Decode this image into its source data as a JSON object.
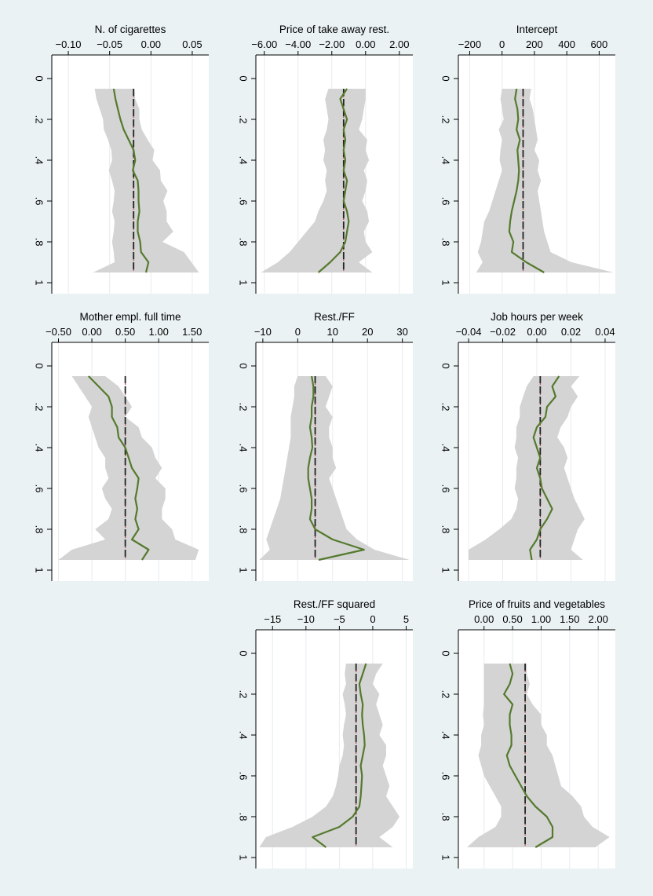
{
  "chart_data": [
    {
      "type": "line",
      "title": "N. of cigarettes",
      "xlim": [
        -0.12,
        0.07
      ],
      "xticks": [
        -0.1,
        -0.05,
        0.0,
        0.05
      ],
      "xtick_labels": [
        "−0.10",
        "−0.05",
        "0.00",
        "0.05"
      ],
      "ylim": [
        0,
        1
      ],
      "yticks": [
        0,
        0.2,
        0.4,
        0.6,
        0.8,
        1
      ],
      "ytick_labels": [
        "0",
        ".2",
        ".4",
        ".6",
        ".8",
        "1"
      ],
      "quantiles": [
        0.05,
        0.1,
        0.15,
        0.2,
        0.25,
        0.3,
        0.35,
        0.4,
        0.45,
        0.5,
        0.55,
        0.6,
        0.65,
        0.7,
        0.75,
        0.8,
        0.85,
        0.9,
        0.95
      ],
      "estimate": [
        -0.045,
        -0.043,
        -0.04,
        -0.037,
        -0.033,
        -0.027,
        -0.021,
        -0.019,
        -0.022,
        -0.016,
        -0.015,
        -0.015,
        -0.014,
        -0.016,
        -0.016,
        -0.013,
        -0.012,
        -0.003,
        -0.006
      ],
      "ci_lower": [
        -0.068,
        -0.066,
        -0.062,
        -0.058,
        -0.057,
        -0.052,
        -0.048,
        -0.047,
        -0.051,
        -0.047,
        -0.044,
        -0.045,
        -0.047,
        -0.044,
        -0.045,
        -0.047,
        -0.045,
        -0.044,
        -0.07
      ],
      "ci_upper": [
        -0.02,
        -0.019,
        -0.014,
        -0.014,
        -0.011,
        -0.004,
        0.004,
        0.002,
        0.011,
        0.012,
        0.02,
        0.015,
        0.019,
        0.019,
        0.027,
        0.014,
        0.04,
        0.049,
        0.058
      ],
      "ols": -0.021
    },
    {
      "type": "line",
      "title": "Price of take away rest.",
      "xlim": [
        -6.5,
        2.8
      ],
      "xticks": [
        -6,
        -4,
        -2,
        0,
        2
      ],
      "xtick_labels": [
        "−6.00",
        "−4.00",
        "−2.00",
        "0.00",
        "2.00"
      ],
      "ylim": [
        0,
        1
      ],
      "yticks": [
        0,
        0.2,
        0.4,
        0.6,
        0.8,
        1
      ],
      "ytick_labels": [
        "0",
        ".2",
        ".4",
        ".6",
        ".8",
        "1"
      ],
      "quantiles": [
        0.05,
        0.1,
        0.15,
        0.2,
        0.25,
        0.3,
        0.35,
        0.4,
        0.45,
        0.5,
        0.55,
        0.6,
        0.65,
        0.7,
        0.75,
        0.8,
        0.85,
        0.9,
        0.95
      ],
      "estimate": [
        -1.1,
        -1.5,
        -1.3,
        -1.1,
        -1.3,
        -1.2,
        -1.3,
        -1.2,
        -1.3,
        -1.1,
        -1.2,
        -1.3,
        -1.1,
        -1.0,
        -1.1,
        -1.2,
        -1.5,
        -2.1,
        -2.8
      ],
      "ci_lower": [
        -2.2,
        -2.4,
        -2.3,
        -2.2,
        -2.3,
        -2.5,
        -2.4,
        -2.5,
        -2.3,
        -2.4,
        -2.3,
        -2.5,
        -2.8,
        -3.0,
        -3.5,
        -4.0,
        -4.5,
        -5.2,
        -6.2
      ],
      "ci_upper": [
        0.0,
        0.0,
        -0.1,
        -0.2,
        -0.4,
        0.1,
        0.0,
        0.2,
        -0.1,
        0.1,
        0.0,
        -0.2,
        0.1,
        0.2,
        -0.1,
        0.0,
        0.4,
        -0.4,
        0.4
      ],
      "ols": -1.3
    },
    {
      "type": "line",
      "title": "Intercept",
      "xlim": [
        -270,
        700
      ],
      "xticks": [
        -200,
        0,
        200,
        400,
        600
      ],
      "xtick_labels": [
        "−200",
        "0",
        "200",
        "400",
        "600"
      ],
      "ylim": [
        0,
        1
      ],
      "yticks": [
        0,
        0.2,
        0.4,
        0.6,
        0.8,
        1
      ],
      "ytick_labels": [
        "0",
        ".2",
        ".4",
        ".6",
        ".8",
        "1"
      ],
      "quantiles": [
        0.05,
        0.1,
        0.15,
        0.2,
        0.25,
        0.3,
        0.35,
        0.4,
        0.45,
        0.5,
        0.55,
        0.6,
        0.65,
        0.7,
        0.75,
        0.8,
        0.85,
        0.9,
        0.95
      ],
      "estimate": [
        90,
        80,
        95,
        100,
        90,
        110,
        95,
        100,
        105,
        100,
        90,
        75,
        60,
        50,
        45,
        70,
        60,
        150,
        260
      ],
      "ci_lower": [
        0,
        -10,
        0,
        10,
        -20,
        0,
        -10,
        -15,
        0,
        -20,
        -40,
        -60,
        -80,
        -110,
        -120,
        -130,
        -150,
        -120,
        -160
      ],
      "ci_upper": [
        180,
        170,
        190,
        200,
        210,
        220,
        200,
        230,
        220,
        240,
        220,
        230,
        240,
        250,
        260,
        280,
        300,
        430,
        690
      ],
      "ols": 130
    },
    {
      "type": "line",
      "title": "Mother empl. full time",
      "xlim": [
        -0.6,
        1.75
      ],
      "xticks": [
        -0.5,
        0,
        0.5,
        1.0,
        1.5
      ],
      "xtick_labels": [
        "−0.50",
        "0.00",
        "0.50",
        "1.00",
        "1.50"
      ],
      "ylim": [
        0,
        1
      ],
      "yticks": [
        0,
        0.2,
        0.4,
        0.6,
        0.8,
        1
      ],
      "ytick_labels": [
        "0",
        ".2",
        ".4",
        ".6",
        ".8",
        "1"
      ],
      "quantiles": [
        0.05,
        0.1,
        0.15,
        0.2,
        0.25,
        0.3,
        0.35,
        0.4,
        0.45,
        0.5,
        0.55,
        0.6,
        0.65,
        0.7,
        0.75,
        0.8,
        0.85,
        0.9,
        0.95
      ],
      "estimate": [
        -0.05,
        0.1,
        0.25,
        0.3,
        0.3,
        0.38,
        0.4,
        0.5,
        0.55,
        0.6,
        0.7,
        0.68,
        0.65,
        0.68,
        0.65,
        0.7,
        0.6,
        0.85,
        0.75
      ],
      "ci_lower": [
        -0.3,
        -0.2,
        -0.1,
        0.0,
        -0.05,
        0.0,
        0.05,
        0.1,
        0.2,
        0.2,
        0.25,
        0.15,
        0.2,
        0.3,
        0.25,
        0.05,
        0.2,
        -0.3,
        -0.5
      ],
      "ci_upper": [
        0.2,
        0.4,
        0.5,
        0.6,
        0.5,
        0.7,
        0.75,
        0.9,
        0.95,
        1.05,
        0.95,
        1.1,
        1.1,
        1.05,
        1.05,
        1.2,
        1.25,
        1.6,
        1.55
      ],
      "ols": 0.5
    },
    {
      "type": "line",
      "title": "Rest./FF",
      "xlim": [
        -12,
        33
      ],
      "xticks": [
        -10,
        0,
        10,
        20,
        30
      ],
      "xtick_labels": [
        "−10",
        "0",
        "10",
        "20",
        "30"
      ],
      "ylim": [
        0,
        1
      ],
      "yticks": [
        0,
        0.2,
        0.4,
        0.6,
        0.8,
        1
      ],
      "ytick_labels": [
        "0",
        ".2",
        ".4",
        ".6",
        ".8",
        "1"
      ],
      "quantiles": [
        0.05,
        0.1,
        0.15,
        0.2,
        0.25,
        0.3,
        0.35,
        0.4,
        0.45,
        0.5,
        0.55,
        0.6,
        0.65,
        0.7,
        0.75,
        0.8,
        0.85,
        0.9,
        0.95
      ],
      "estimate": [
        4,
        4.5,
        4.5,
        4,
        4,
        3.5,
        4,
        4.2,
        3.5,
        3,
        3,
        3.5,
        4,
        4,
        3.5,
        5,
        10,
        19,
        6
      ],
      "ci_lower": [
        0,
        -1,
        -1,
        -1.5,
        -2,
        -2,
        -2,
        -2.5,
        -3,
        -3.5,
        -4,
        -4.5,
        -5,
        -6,
        -7,
        -8,
        -9,
        -8,
        -11
      ],
      "ci_upper": [
        8,
        10,
        9,
        8,
        10,
        9,
        9,
        10,
        10,
        11,
        9,
        10,
        11,
        12,
        13,
        14,
        17,
        22,
        32
      ],
      "ols": 5
    },
    {
      "type": "line",
      "title": "Job hours per week",
      "xlim": [
        -0.046,
        0.046
      ],
      "xticks": [
        -0.04,
        -0.02,
        0,
        0.02,
        0.04
      ],
      "xtick_labels": [
        "−0.04",
        "−0.02",
        "0.00",
        "0.02",
        "0.04"
      ],
      "ylim": [
        0,
        1
      ],
      "yticks": [
        0,
        0.2,
        0.4,
        0.6,
        0.8,
        1
      ],
      "ytick_labels": [
        "0",
        ".2",
        ".4",
        ".6",
        ".8",
        "1"
      ],
      "quantiles": [
        0.05,
        0.1,
        0.15,
        0.2,
        0.25,
        0.3,
        0.35,
        0.4,
        0.45,
        0.5,
        0.55,
        0.6,
        0.65,
        0.7,
        0.75,
        0.8,
        0.85,
        0.9,
        0.95
      ],
      "estimate": [
        0.013,
        0.009,
        0.011,
        0.006,
        0.005,
        0.0,
        -0.002,
        0.0,
        0.002,
        0.0,
        0.002,
        0.003,
        0.006,
        0.009,
        0.006,
        0.002,
        0.0,
        -0.004,
        -0.003
      ],
      "ci_lower": [
        -0.002,
        -0.006,
        -0.008,
        -0.01,
        -0.01,
        -0.012,
        -0.012,
        -0.013,
        -0.011,
        -0.012,
        -0.012,
        -0.013,
        -0.011,
        -0.012,
        -0.015,
        -0.022,
        -0.03,
        -0.04,
        -0.04
      ],
      "ci_upper": [
        0.025,
        0.02,
        0.024,
        0.02,
        0.018,
        0.014,
        0.012,
        0.016,
        0.018,
        0.016,
        0.018,
        0.02,
        0.022,
        0.025,
        0.028,
        0.024,
        0.022,
        0.02,
        0.027
      ],
      "ols": 0.002
    },
    {
      "type": "line",
      "title": "Rest./FF squared",
      "xlim": [
        -17.5,
        6
      ],
      "xticks": [
        -15,
        -10,
        -5,
        0,
        5
      ],
      "xtick_labels": [
        "−15",
        "−10",
        "−5",
        "0",
        "5"
      ],
      "ylim": [
        0,
        1
      ],
      "yticks": [
        0,
        0.2,
        0.4,
        0.6,
        0.8,
        1
      ],
      "ytick_labels": [
        "0",
        ".2",
        ".4",
        ".6",
        ".8",
        "1"
      ],
      "quantiles": [
        0.05,
        0.1,
        0.15,
        0.2,
        0.25,
        0.3,
        0.35,
        0.4,
        0.45,
        0.5,
        0.55,
        0.6,
        0.65,
        0.7,
        0.75,
        0.8,
        0.85,
        0.9,
        0.95
      ],
      "estimate": [
        -1,
        -1.5,
        -2,
        -1.8,
        -1.5,
        -1.6,
        -1.5,
        -1.3,
        -1.2,
        -1.5,
        -1.8,
        -1.6,
        -1.7,
        -1.8,
        -2,
        -3,
        -5,
        -9,
        -7
      ],
      "ci_lower": [
        -4,
        -4.2,
        -4,
        -4.5,
        -4.2,
        -4,
        -4.3,
        -4.5,
        -4.3,
        -4.5,
        -5,
        -5.2,
        -5.5,
        -6,
        -7,
        -9,
        -12,
        -16,
        -17
      ],
      "ci_upper": [
        1.5,
        0.5,
        0,
        1,
        0.5,
        1,
        1.5,
        1,
        2,
        2,
        1.5,
        2,
        2.5,
        2,
        3,
        4,
        3,
        1,
        3
      ],
      "ols": -2.5
    },
    {
      "type": "line",
      "title": "Price of fruits and vegetables",
      "xlim": [
        -0.45,
        2.3
      ],
      "xticks": [
        0,
        0.5,
        1.0,
        1.5,
        2.0
      ],
      "xtick_labels": [
        "0.00",
        "0.50",
        "1.00",
        "1.50",
        "2.00"
      ],
      "ylim": [
        0,
        1
      ],
      "yticks": [
        0,
        0.2,
        0.4,
        0.6,
        0.8,
        1
      ],
      "ytick_labels": [
        "0",
        ".2",
        ".4",
        ".6",
        ".8",
        "1"
      ],
      "quantiles": [
        0.05,
        0.1,
        0.15,
        0.2,
        0.25,
        0.3,
        0.35,
        0.4,
        0.45,
        0.5,
        0.55,
        0.6,
        0.65,
        0.7,
        0.75,
        0.8,
        0.85,
        0.9,
        0.95
      ],
      "estimate": [
        0.45,
        0.5,
        0.45,
        0.35,
        0.5,
        0.45,
        0.45,
        0.48,
        0.48,
        0.4,
        0.45,
        0.55,
        0.65,
        0.75,
        0.9,
        1.1,
        1.2,
        1.2,
        0.9
      ],
      "ci_lower": [
        0.0,
        0.0,
        0.0,
        0.0,
        0.0,
        -0.02,
        0.0,
        -0.05,
        -0.05,
        -0.1,
        -0.05,
        0.0,
        0.1,
        0.2,
        0.3,
        0.3,
        0.2,
        -0.1,
        -0.3
      ],
      "ci_upper": [
        0.75,
        0.75,
        0.8,
        0.75,
        0.85,
        1.0,
        1.0,
        1.1,
        1.1,
        1.2,
        1.25,
        1.3,
        1.35,
        1.55,
        1.7,
        1.75,
        1.9,
        2.2,
        1.95
      ],
      "ols": 0.72
    }
  ]
}
